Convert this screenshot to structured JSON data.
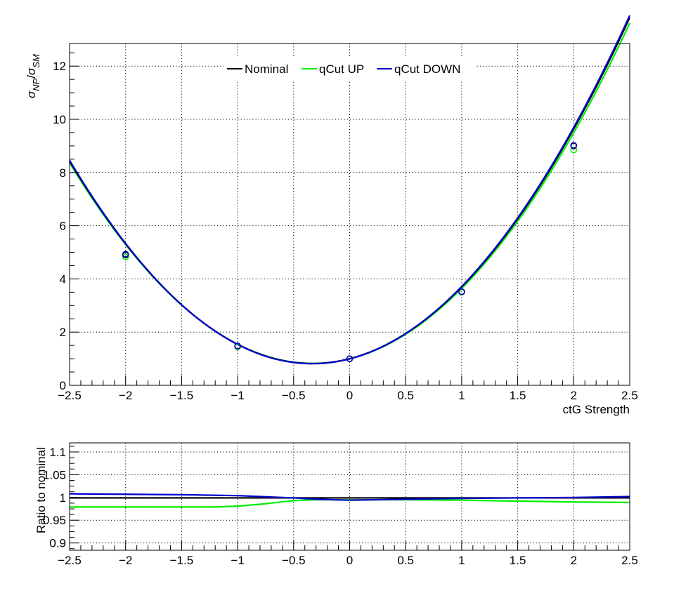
{
  "chart_data": [
    {
      "type": "line",
      "title": "",
      "xlabel": "ctG Strength",
      "ylabel": "σ_NP/σ_SM",
      "ylabel_parts": [
        "σ",
        "NP",
        "/",
        "σ",
        "SM"
      ],
      "xlim": [
        -2.5,
        2.5
      ],
      "ylim": [
        0,
        12.85
      ],
      "xticks": [
        "−2.5",
        "−2",
        "−1.5",
        "−1",
        "−0.5",
        "0",
        "0.5",
        "1",
        "1.5",
        "2",
        "2.5"
      ],
      "xtick_values": [
        -2.5,
        -2,
        -1.5,
        -1,
        -0.5,
        0,
        0.5,
        1,
        1.5,
        2,
        2.5
      ],
      "yticks": [
        "0",
        "2",
        "4",
        "6",
        "8",
        "10",
        "12"
      ],
      "ytick_values": [
        0,
        2,
        4,
        6,
        8,
        10,
        12
      ],
      "grid": true,
      "legend_position": "top-center",
      "series": [
        {
          "name": "Nominal",
          "color": "#000000",
          "quadratic": {
            "a": 1.62,
            "b": 1.08,
            "c": 1.0
          },
          "x": [
            -2,
            -1,
            0,
            1,
            2
          ],
          "y": [
            4.9,
            1.47,
            1.0,
            3.52,
            9.0
          ]
        },
        {
          "name": "qCut UP",
          "color": "#00ee00",
          "quadratic": {
            "a": 1.6,
            "b": 1.05,
            "c": 0.995
          },
          "x": [
            -2,
            -1,
            0,
            1,
            2
          ],
          "y": [
            4.83,
            1.45,
            1.0,
            3.5,
            8.85
          ]
        },
        {
          "name": "qCut DOWN",
          "color": "#0000cc",
          "quadratic": {
            "a": 1.63,
            "b": 1.09,
            "c": 0.995
          },
          "x": [
            -2,
            -1,
            0,
            1,
            2
          ],
          "y": [
            4.93,
            1.48,
            1.0,
            3.52,
            9.02
          ]
        }
      ]
    },
    {
      "type": "line",
      "title": "",
      "xlabel": "",
      "ylabel": "Ratio to nominal",
      "xlim": [
        -2.5,
        2.5
      ],
      "ylim": [
        0.884,
        1.12
      ],
      "xticks": [
        "−2.5",
        "−2",
        "−1.5",
        "−1",
        "−0.5",
        "0",
        "0.5",
        "1",
        "1.5",
        "2",
        "2.5"
      ],
      "xtick_values": [
        -2.5,
        -2,
        -1.5,
        -1,
        -0.5,
        0,
        0.5,
        1,
        1.5,
        2,
        2.5
      ],
      "yticks": [
        "0.9",
        "0.95",
        "1",
        "1.05",
        "1.1"
      ],
      "ytick_values": [
        0.9,
        0.95,
        1.0,
        1.05,
        1.1
      ],
      "grid": true,
      "series": [
        {
          "name": "Nominal",
          "color": "#000000",
          "x": [
            -2.5,
            2.5
          ],
          "y": [
            0.999,
            0.999
          ]
        },
        {
          "name": "qCut UP",
          "color": "#00ee00",
          "x": [
            -2.5,
            -2,
            -1.5,
            -1.2,
            -1,
            -0.8,
            -0.5,
            -0.3,
            0,
            0.5,
            1,
            1.5,
            2,
            2.5
          ],
          "y": [
            0.979,
            0.979,
            0.979,
            0.979,
            0.981,
            0.985,
            0.993,
            0.995,
            0.995,
            0.995,
            0.994,
            0.992,
            0.99,
            0.989
          ]
        },
        {
          "name": "qCut DOWN",
          "color": "#0000cc",
          "x": [
            -2.5,
            -2,
            -1.5,
            -1,
            -0.5,
            -0.3,
            0,
            0.5,
            1,
            1.5,
            2,
            2.5
          ],
          "y": [
            1.008,
            1.007,
            1.006,
            1.004,
            0.999,
            0.996,
            0.994,
            0.996,
            0.998,
            0.999,
            1.0,
            1.002
          ]
        }
      ]
    }
  ]
}
